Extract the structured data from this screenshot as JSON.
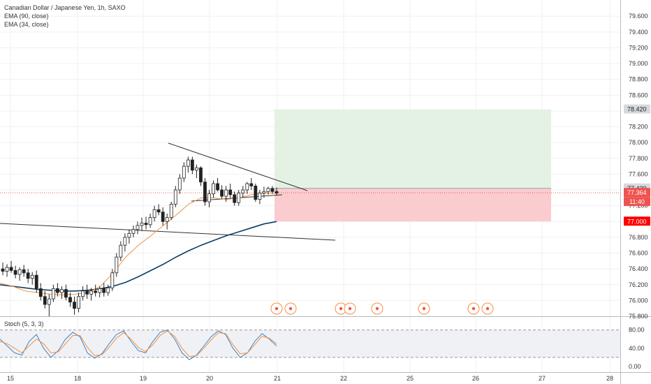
{
  "header": {
    "title": "Canadian Dollar / Japanese Yen, 1h, SAXO",
    "indicators": [
      "EMA (90, close)",
      "EMA (34, close)"
    ]
  },
  "oscillator": {
    "label": "Stoch (5, 3, 3)",
    "ticks": [
      "80.00",
      "40.00",
      "0.00"
    ]
  },
  "price_tags": {
    "target": "78.420",
    "entry": "77.420",
    "last": "77.364",
    "countdown": "11:40",
    "stop": "77.000"
  },
  "colors": {
    "up": "#26a69a",
    "down": "#ef5350",
    "ema90": "#0c3d63",
    "ema34": "#f4913d",
    "stoch_k": "#3d84c6",
    "stoch_d": "#f4913d",
    "target_zone": "#e4f2e3",
    "stop_zone": "#fbcccf",
    "event_marker": "#f4913d"
  },
  "chart_data": {
    "type": "candlestick",
    "title": "Canadian Dollar / Japanese Yen, 1h, SAXO",
    "ylim": [
      75.8,
      79.7
    ],
    "y_ticks": [
      "79.600",
      "79.400",
      "79.200",
      "79.000",
      "78.800",
      "78.600",
      "78.400",
      "78.200",
      "78.000",
      "77.800",
      "77.600",
      "77.400",
      "77.200",
      "77.000",
      "76.800",
      "76.600",
      "76.400",
      "76.200",
      "76.000",
      "75.800"
    ],
    "x_ticks": [
      "15",
      "18",
      "19",
      "20",
      "21",
      "22",
      "25",
      "26",
      "27",
      "28"
    ],
    "ohlc": [
      [
        76.4,
        76.48,
        76.32,
        76.37
      ],
      [
        76.37,
        76.46,
        76.3,
        76.42
      ],
      [
        76.42,
        76.5,
        76.35,
        76.38
      ],
      [
        76.38,
        76.44,
        76.28,
        76.33
      ],
      [
        76.33,
        76.42,
        76.25,
        76.39
      ],
      [
        76.39,
        76.45,
        76.3,
        76.35
      ],
      [
        76.35,
        76.4,
        76.22,
        76.28
      ],
      [
        76.28,
        76.36,
        76.2,
        76.32
      ],
      [
        76.32,
        76.38,
        76.1,
        76.15
      ],
      [
        76.15,
        76.22,
        76.0,
        76.05
      ],
      [
        76.05,
        76.12,
        75.9,
        75.95
      ],
      [
        75.95,
        76.08,
        75.8,
        76.02
      ],
      [
        76.02,
        76.2,
        75.98,
        76.15
      ],
      [
        76.15,
        76.22,
        76.05,
        76.1
      ],
      [
        76.1,
        76.18,
        76.02,
        76.14
      ],
      [
        76.14,
        76.2,
        76.0,
        76.04
      ],
      [
        76.04,
        76.1,
        75.92,
        75.98
      ],
      [
        75.98,
        76.05,
        75.82,
        75.9
      ],
      [
        75.9,
        76.1,
        75.85,
        76.05
      ],
      [
        76.05,
        76.18,
        76.0,
        76.12
      ],
      [
        76.12,
        76.2,
        76.02,
        76.08
      ],
      [
        76.08,
        76.16,
        76.0,
        76.12
      ],
      [
        76.12,
        76.2,
        76.05,
        76.1
      ],
      [
        76.1,
        76.18,
        76.04,
        76.15
      ],
      [
        76.15,
        76.22,
        76.05,
        76.1
      ],
      [
        76.1,
        76.2,
        76.06,
        76.16
      ],
      [
        76.16,
        76.4,
        76.12,
        76.35
      ],
      [
        76.35,
        76.6,
        76.3,
        76.55
      ],
      [
        76.55,
        76.75,
        76.5,
        76.7
      ],
      [
        76.7,
        76.85,
        76.62,
        76.8
      ],
      [
        76.8,
        76.9,
        76.72,
        76.85
      ],
      [
        76.85,
        76.95,
        76.8,
        76.9
      ],
      [
        76.9,
        77.0,
        76.84,
        76.95
      ],
      [
        76.95,
        77.05,
        76.88,
        76.98
      ],
      [
        76.98,
        77.06,
        76.9,
        76.96
      ],
      [
        76.96,
        77.1,
        76.92,
        77.05
      ],
      [
        77.05,
        77.2,
        77.0,
        77.15
      ],
      [
        77.15,
        77.22,
        77.08,
        77.12
      ],
      [
        77.12,
        77.18,
        76.95,
        77.0
      ],
      [
        77.0,
        77.1,
        76.9,
        77.05
      ],
      [
        77.05,
        77.25,
        77.02,
        77.22
      ],
      [
        77.22,
        77.45,
        77.18,
        77.4
      ],
      [
        77.4,
        77.6,
        77.35,
        77.55
      ],
      [
        77.55,
        77.75,
        77.5,
        77.7
      ],
      [
        77.7,
        77.82,
        77.62,
        77.78
      ],
      [
        77.78,
        77.82,
        77.6,
        77.65
      ],
      [
        77.65,
        77.72,
        77.55,
        77.68
      ],
      [
        77.68,
        77.7,
        77.45,
        77.5
      ],
      [
        77.5,
        77.55,
        77.2,
        77.25
      ],
      [
        77.25,
        77.4,
        77.18,
        77.35
      ],
      [
        77.35,
        77.52,
        77.3,
        77.48
      ],
      [
        77.48,
        77.55,
        77.38,
        77.4
      ],
      [
        77.4,
        77.46,
        77.28,
        77.32
      ],
      [
        77.32,
        77.45,
        77.25,
        77.4
      ],
      [
        77.4,
        77.48,
        77.3,
        77.34
      ],
      [
        77.34,
        77.38,
        77.2,
        77.24
      ],
      [
        77.24,
        77.4,
        77.2,
        77.36
      ],
      [
        77.36,
        77.45,
        77.3,
        77.4
      ],
      [
        77.4,
        77.5,
        77.35,
        77.48
      ],
      [
        77.48,
        77.55,
        77.4,
        77.45
      ],
      [
        77.45,
        77.48,
        77.25,
        77.28
      ],
      [
        77.28,
        77.4,
        77.22,
        77.36
      ],
      [
        77.36,
        77.44,
        77.3,
        77.38
      ],
      [
        77.38,
        77.44,
        77.34,
        77.42
      ],
      [
        77.42,
        77.45,
        77.35,
        77.38
      ],
      [
        77.38,
        77.43,
        77.33,
        77.36
      ]
    ],
    "series": [
      {
        "name": "EMA (90, close)",
        "values": [
          76.2,
          76.18,
          76.16,
          76.14,
          76.13,
          76.12,
          76.12,
          76.13,
          76.15,
          76.18,
          76.23,
          76.3,
          76.38,
          76.46,
          76.55,
          76.63,
          76.7,
          76.76,
          76.82,
          76.87,
          76.92,
          76.97,
          77.0
        ]
      },
      {
        "name": "EMA (34, close)",
        "values": [
          76.22,
          76.18,
          76.12,
          76.1,
          76.08,
          76.07,
          76.08,
          76.1,
          76.18,
          76.35,
          76.55,
          76.7,
          76.82,
          76.95,
          77.08,
          77.22,
          77.3,
          77.3,
          77.28,
          77.3,
          77.34,
          77.36,
          77.36
        ]
      }
    ],
    "stochastic": {
      "k": [
        60,
        45,
        30,
        25,
        55,
        70,
        40,
        20,
        35,
        60,
        75,
        65,
        30,
        18,
        28,
        50,
        70,
        78,
        55,
        35,
        30,
        55,
        75,
        80,
        60,
        30,
        15,
        25,
        45,
        65,
        78,
        70,
        40,
        20,
        30,
        55,
        72,
        60,
        45
      ],
      "d": [
        55,
        50,
        40,
        30,
        45,
        60,
        50,
        30,
        32,
        50,
        68,
        68,
        42,
        24,
        26,
        42,
        62,
        74,
        60,
        42,
        33,
        48,
        68,
        78,
        66,
        40,
        22,
        24,
        40,
        58,
        74,
        72,
        48,
        28,
        30,
        48,
        66,
        62,
        50
      ],
      "ylim": [
        0,
        100
      ]
    },
    "position": {
      "target": 78.42,
      "entry": 77.42,
      "stop": 77.0
    },
    "trendlines": [
      {
        "from": [
          77.88,
          "19 09:00"
        ],
        "to": [
          77.3,
          "21 05:00"
        ]
      },
      {
        "from": [
          77.02,
          "19 17:00"
        ],
        "to": [
          77.2,
          "21 01:00"
        ]
      },
      {
        "from": [
          76.87,
          "15 00:00"
        ],
        "to": [
          76.66,
          "22 07:00"
        ]
      }
    ]
  }
}
